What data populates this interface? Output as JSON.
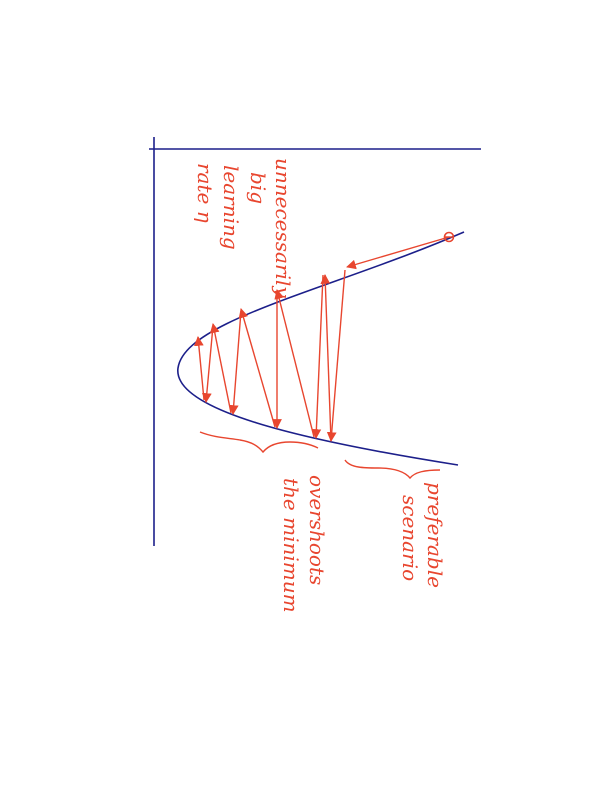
{
  "colors": {
    "ink_blue": "#1c1f8a",
    "ink_red": "#e8462f",
    "background": "#ffffff"
  },
  "annotations": {
    "big_rate": [
      "unnecessarily",
      "big",
      "learning",
      "rate η"
    ],
    "overshoots": [
      "overshoots",
      "the minimum"
    ],
    "preferable": [
      "preferable",
      "scenario"
    ]
  }
}
